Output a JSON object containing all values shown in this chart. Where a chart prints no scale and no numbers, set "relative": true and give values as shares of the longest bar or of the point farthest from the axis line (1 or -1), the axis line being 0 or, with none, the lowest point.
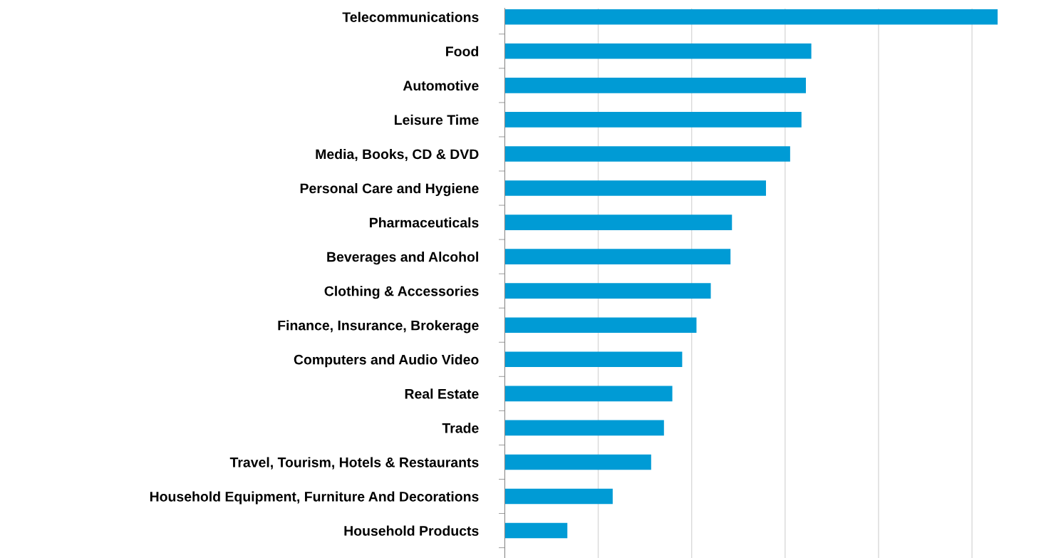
{
  "chart_data": {
    "type": "bar",
    "orientation": "horizontal",
    "relative": true,
    "grid": "x",
    "color": "#009bd5",
    "categories": [
      "Telecommunications",
      "Food",
      "Automotive",
      "Leisure Time",
      "Media, Books, CD & DVD",
      "Personal Care and Hygiene",
      "Pharmaceuticals",
      "Beverages and Alcohol",
      "Clothing & Accessories",
      "Finance, Insurance, Brokerage",
      "Computers and Audio Video",
      "Real Estate",
      "Trade",
      "Travel, Tourism, Hotels & Restaurants",
      "Household Equipment, Furniture And Decorations",
      "Household Products"
    ],
    "values": [
      1,
      0.622,
      0.611,
      0.602,
      0.579,
      0.53,
      0.461,
      0.458,
      0.418,
      0.389,
      0.36,
      0.34,
      0.323,
      0.297,
      0.219,
      0.127
    ]
  }
}
